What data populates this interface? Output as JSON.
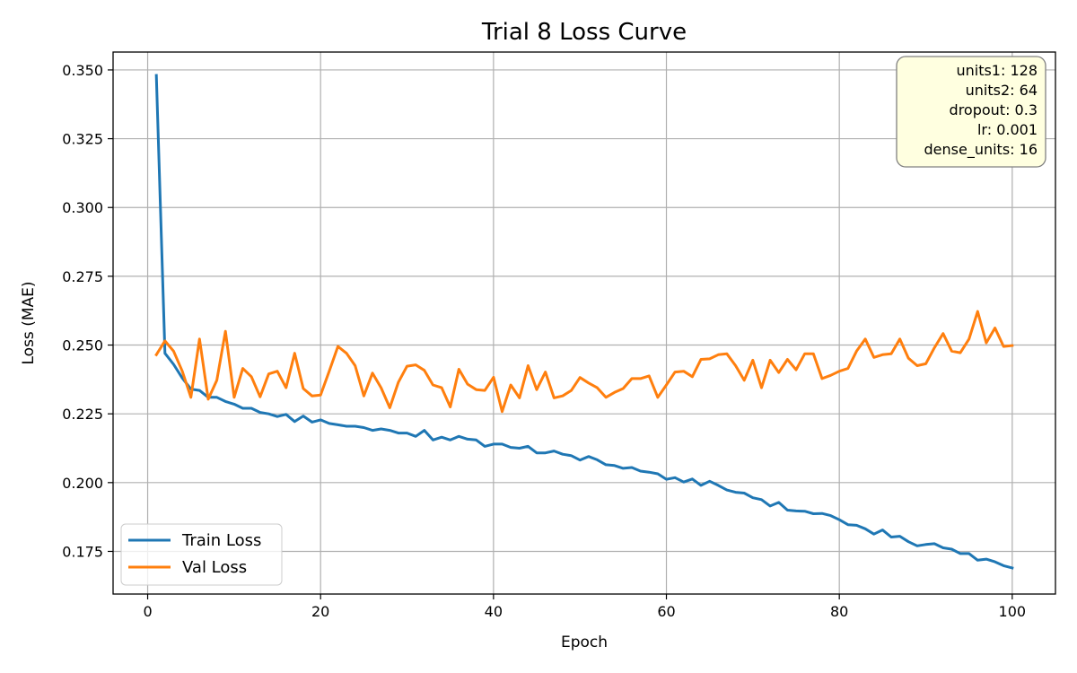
{
  "chart_data": {
    "type": "line",
    "title": "Trial 8 Loss Curve",
    "xlabel": "Epoch",
    "ylabel": "Loss (MAE)",
    "xlim": [
      -4,
      105
    ],
    "ylim": [
      0.1595,
      0.3565
    ],
    "xticks": [
      0,
      20,
      40,
      60,
      80,
      100
    ],
    "yticks": [
      0.175,
      0.2,
      0.225,
      0.25,
      0.275,
      0.3,
      0.325,
      0.35
    ],
    "xtick_labels": [
      "0",
      "20",
      "40",
      "60",
      "80",
      "100"
    ],
    "ytick_labels": [
      "0.175",
      "0.200",
      "0.225",
      "0.250",
      "0.275",
      "0.300",
      "0.325",
      "0.350"
    ],
    "grid": true,
    "legend_position": "lower-left",
    "annotation": {
      "position": "top-right",
      "lines": [
        "units1: 128",
        "units2: 64",
        "dropout: 0.3",
        "lr: 0.001",
        "dense_units: 16"
      ]
    },
    "series": [
      {
        "name": "Train Loss",
        "color": "#1f77b4",
        "x": [
          1,
          2,
          3,
          4,
          5,
          6,
          7,
          8,
          9,
          10,
          11,
          12,
          13,
          14,
          15,
          16,
          17,
          18,
          19,
          20,
          21,
          22,
          23,
          24,
          25,
          26,
          27,
          28,
          29,
          30,
          31,
          32,
          33,
          34,
          35,
          36,
          37,
          38,
          39,
          40,
          41,
          42,
          43,
          44,
          45,
          46,
          47,
          48,
          49,
          50,
          51,
          52,
          53,
          54,
          55,
          56,
          57,
          58,
          59,
          60,
          61,
          62,
          63,
          64,
          65,
          66,
          67,
          68,
          69,
          70,
          71,
          72,
          73,
          74,
          75,
          76,
          77,
          78,
          79,
          80,
          81,
          82,
          83,
          84,
          85,
          86,
          87,
          88,
          89,
          90,
          91,
          92,
          93,
          94,
          95,
          96,
          97,
          98,
          99,
          100
        ],
        "values": [
          0.348,
          0.247,
          0.243,
          0.238,
          0.234,
          0.2335,
          0.231,
          0.231,
          0.2295,
          0.2285,
          0.227,
          0.227,
          0.2255,
          0.225,
          0.224,
          0.2248,
          0.2222,
          0.2242,
          0.222,
          0.2228,
          0.2215,
          0.221,
          0.2205,
          0.2205,
          0.22,
          0.219,
          0.2195,
          0.219,
          0.218,
          0.218,
          0.2168,
          0.219,
          0.2155,
          0.2165,
          0.2155,
          0.2168,
          0.2158,
          0.2155,
          0.2132,
          0.214,
          0.214,
          0.2128,
          0.2125,
          0.2132,
          0.2108,
          0.2108,
          0.2115,
          0.2103,
          0.2098,
          0.2082,
          0.2095,
          0.2083,
          0.2065,
          0.2062,
          0.2052,
          0.2055,
          0.2042,
          0.2038,
          0.2032,
          0.2012,
          0.2018,
          0.2002,
          0.2013,
          0.199,
          0.2005,
          0.199,
          0.1973,
          0.1965,
          0.1962,
          0.1945,
          0.1938,
          0.1915,
          0.1928,
          0.19,
          0.1897,
          0.1896,
          0.1887,
          0.1888,
          0.188,
          0.1865,
          0.1847,
          0.1845,
          0.1832,
          0.1813,
          0.1828,
          0.1802,
          0.1805,
          0.1785,
          0.177,
          0.1775,
          0.1778,
          0.1763,
          0.1758,
          0.1742,
          0.1742,
          0.1718,
          0.1722,
          0.1712,
          0.1698,
          0.169
        ]
      },
      {
        "name": "Val Loss",
        "color": "#ff7f0e",
        "x": [
          1,
          2,
          3,
          4,
          5,
          6,
          7,
          8,
          9,
          10,
          11,
          12,
          13,
          14,
          15,
          16,
          17,
          18,
          19,
          20,
          21,
          22,
          23,
          24,
          25,
          26,
          27,
          28,
          29,
          30,
          31,
          32,
          33,
          34,
          35,
          36,
          37,
          38,
          39,
          40,
          41,
          42,
          43,
          44,
          45,
          46,
          47,
          48,
          49,
          50,
          51,
          52,
          53,
          54,
          55,
          56,
          57,
          58,
          59,
          60,
          61,
          62,
          63,
          64,
          65,
          66,
          67,
          68,
          69,
          70,
          71,
          72,
          73,
          74,
          75,
          76,
          77,
          78,
          79,
          80,
          81,
          82,
          83,
          84,
          85,
          86,
          87,
          88,
          89,
          90,
          91,
          92,
          93,
          94,
          95,
          96,
          97,
          98,
          99,
          100
        ],
        "values": [
          0.2465,
          0.2515,
          0.2478,
          0.2405,
          0.231,
          0.2522,
          0.2303,
          0.2372,
          0.255,
          0.231,
          0.2415,
          0.2385,
          0.2312,
          0.2395,
          0.2405,
          0.2345,
          0.247,
          0.2342,
          0.2315,
          0.2318,
          0.2405,
          0.2495,
          0.247,
          0.2425,
          0.2315,
          0.2398,
          0.2345,
          0.2272,
          0.2365,
          0.2423,
          0.2428,
          0.2408,
          0.2355,
          0.2345,
          0.2275,
          0.2412,
          0.2358,
          0.2338,
          0.2335,
          0.2383,
          0.2258,
          0.2355,
          0.2308,
          0.2425,
          0.2338,
          0.2402,
          0.2308,
          0.2315,
          0.2335,
          0.2382,
          0.2362,
          0.2345,
          0.231,
          0.2328,
          0.2342,
          0.2378,
          0.2378,
          0.2388,
          0.231,
          0.2355,
          0.2402,
          0.2405,
          0.2385,
          0.2448,
          0.245,
          0.2465,
          0.2468,
          0.2425,
          0.2372,
          0.2445,
          0.2345,
          0.2445,
          0.24,
          0.2448,
          0.241,
          0.2468,
          0.2468,
          0.2378,
          0.239,
          0.2405,
          0.2415,
          0.2478,
          0.2522,
          0.2455,
          0.2465,
          0.2468,
          0.2522,
          0.2452,
          0.2425,
          0.2432,
          0.249,
          0.2542,
          0.2478,
          0.2472,
          0.2522,
          0.2622,
          0.2508,
          0.2562,
          0.2495,
          0.2498
        ]
      }
    ]
  }
}
